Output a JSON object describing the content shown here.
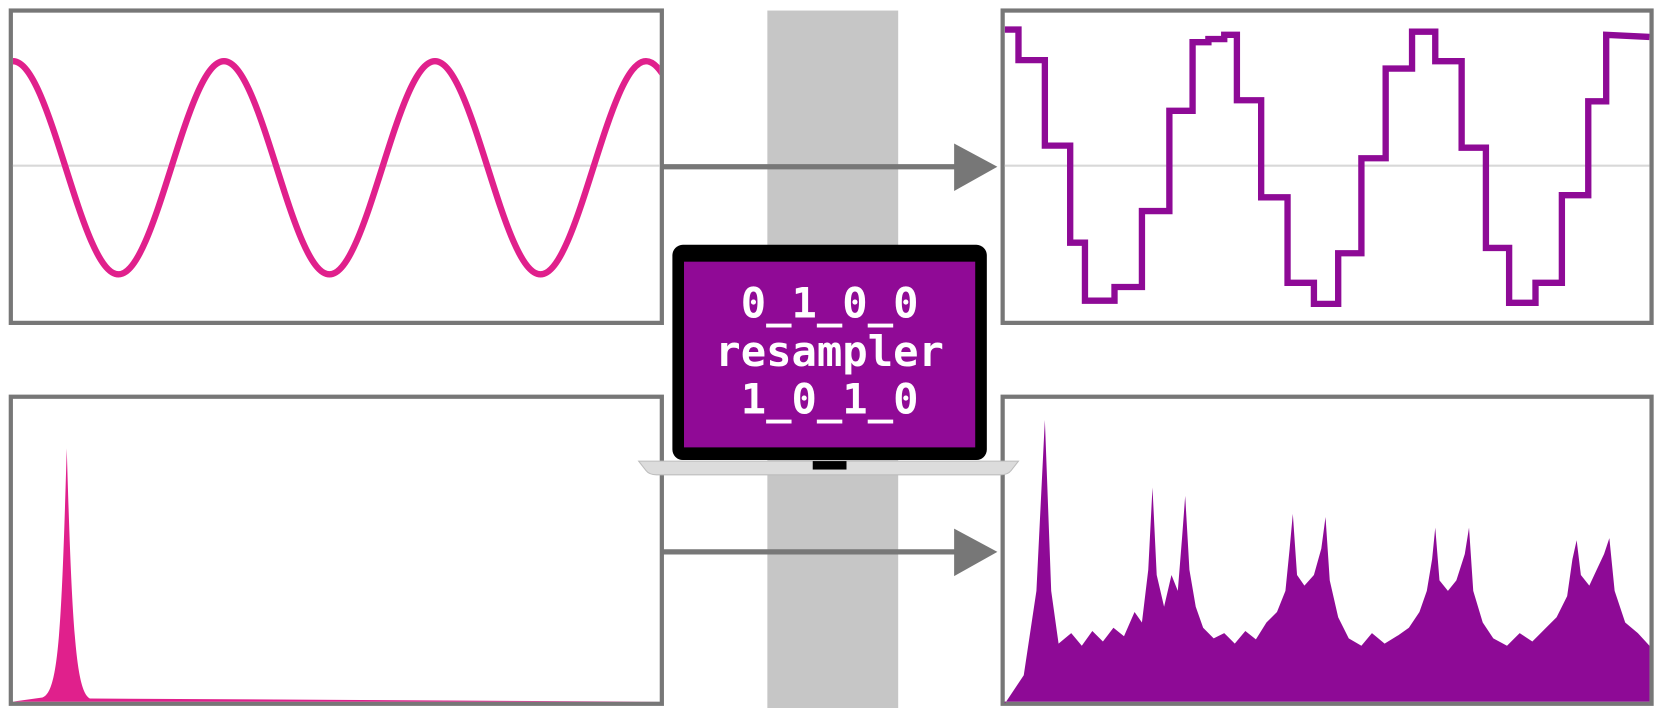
{
  "laptop_screen": {
    "lines": [
      "0_1_0_0",
      "resampler",
      "1_0_1_0"
    ]
  }
}
